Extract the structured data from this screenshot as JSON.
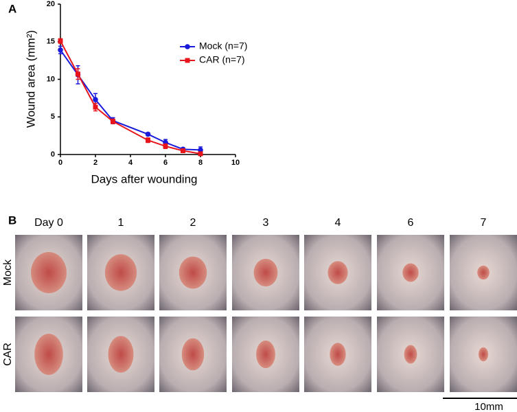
{
  "chart_data": {
    "type": "line",
    "panel_label": "A",
    "xlabel": "Days after wounding",
    "ylabel": "Wound area (mm²)",
    "x": [
      0,
      1,
      2,
      3,
      5,
      6,
      7,
      8
    ],
    "series": [
      {
        "name": "Mock (n=7)",
        "color": "#1a1adb",
        "marker": "circle",
        "values": [
          13.9,
          10.6,
          7.3,
          4.5,
          2.7,
          1.6,
          0.7,
          0.6
        ],
        "errors": [
          0.5,
          1.2,
          0.8,
          0.4,
          0.2,
          0.4,
          0.2,
          0.4
        ]
      },
      {
        "name": "CAR (n=7)",
        "color": "#e8141b",
        "marker": "square",
        "values": [
          15.1,
          10.7,
          6.3,
          4.4,
          1.9,
          1.1,
          0.5,
          0.1
        ],
        "errors": [
          0.3,
          0.7,
          0.5,
          0.3,
          0.3,
          0.3,
          0.1,
          0.1
        ]
      }
    ],
    "xlim": [
      0,
      10
    ],
    "xticks": [
      0,
      2,
      4,
      6,
      8,
      10
    ],
    "ylim": [
      0,
      20
    ],
    "yticks": [
      0,
      5,
      10,
      15,
      20
    ],
    "legend": "upper right",
    "grid": false
  },
  "photos": {
    "panel_label": "B",
    "columns": [
      "Day 0",
      "1",
      "2",
      "3",
      "4",
      "6",
      "7"
    ],
    "rows": [
      "Mock",
      "CAR"
    ],
    "scale_bar": "10mm"
  }
}
